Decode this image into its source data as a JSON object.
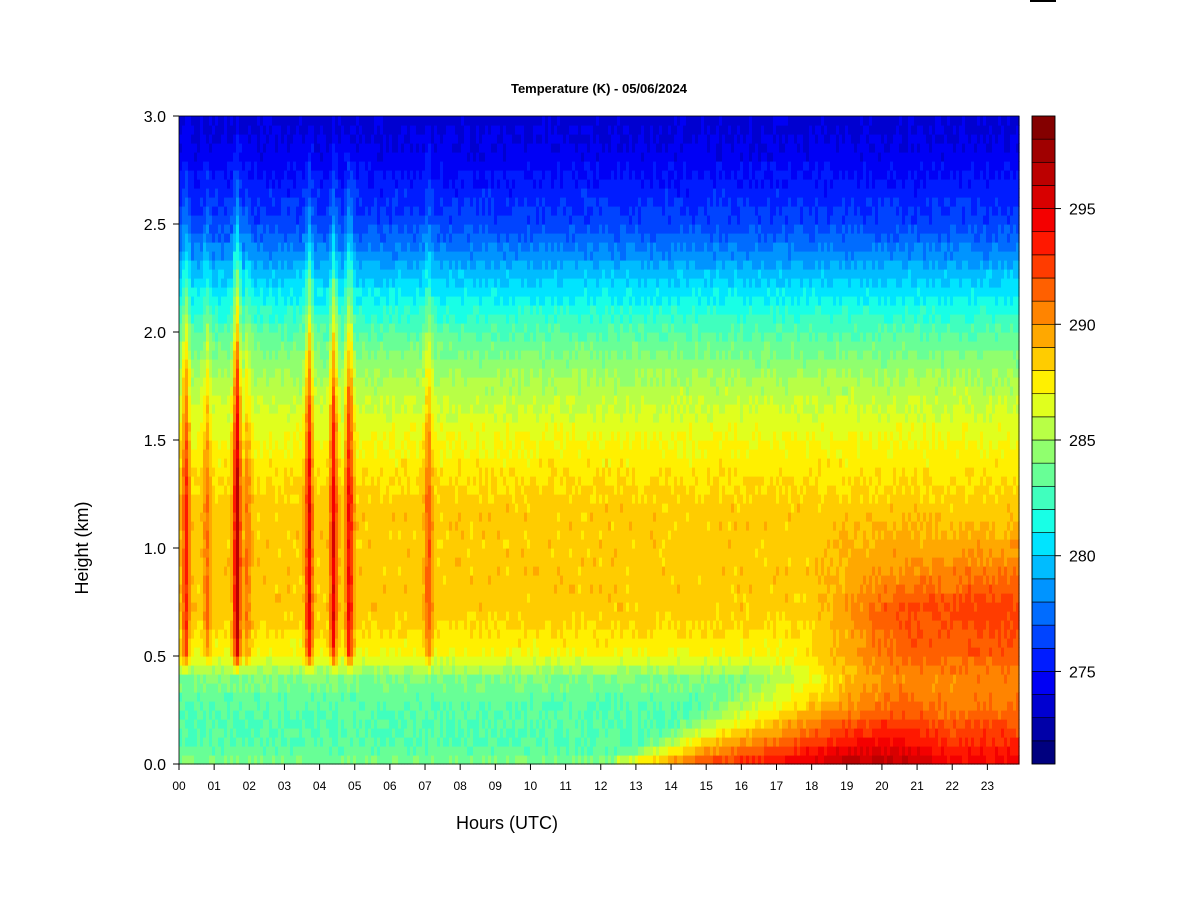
{
  "chart_data": {
    "type": "heatmap",
    "title": "Temperature (K) - 05/06/2024",
    "xlabel": "Hours (UTC)",
    "ylabel": "Height (km)",
    "x_ticks": [
      "00",
      "01",
      "02",
      "03",
      "04",
      "05",
      "06",
      "07",
      "08",
      "09",
      "10",
      "11",
      "12",
      "13",
      "14",
      "15",
      "16",
      "17",
      "18",
      "19",
      "20",
      "21",
      "22",
      "23"
    ],
    "y_ticks": [
      "0.0",
      "0.5",
      "1.0",
      "1.5",
      "2.0",
      "2.5",
      "3.0"
    ],
    "xlim": [
      0,
      23.9
    ],
    "ylim": [
      0,
      3.0
    ],
    "colorbar": {
      "range": [
        271,
        299
      ],
      "ticks": [
        "275",
        "280",
        "285",
        "290",
        "295"
      ],
      "tick_values": [
        275,
        280,
        285,
        290,
        295
      ],
      "levels": 28,
      "colors": [
        "#00007f",
        "#0000a8",
        "#0000d0",
        "#0000f5",
        "#001cff",
        "#0044ff",
        "#006cff",
        "#0094ff",
        "#00bcff",
        "#00e4ff",
        "#18ffe6",
        "#40ffbe",
        "#68ff96",
        "#90ff6e",
        "#b8ff46",
        "#e0ff1e",
        "#fff000",
        "#ffcc00",
        "#ffa800",
        "#ff8400",
        "#ff6000",
        "#ff3c00",
        "#ff1800",
        "#f40000",
        "#d80000",
        "#bc0000",
        "#a00000",
        "#840000"
      ]
    },
    "base_profile": {
      "heights_km": [
        0.0,
        0.1,
        0.25,
        0.4,
        0.5,
        0.7,
        1.0,
        1.2,
        1.5,
        1.8,
        2.0,
        2.2,
        2.5,
        2.8,
        3.0
      ],
      "temps_k": [
        284,
        283,
        283,
        284,
        287,
        288.5,
        288.5,
        288.5,
        287,
        285,
        283,
        280.5,
        276.5,
        274.5,
        273.5
      ]
    },
    "surface_warming": [
      {
        "hour": 13,
        "surface_k": 288
      },
      {
        "hour": 15,
        "surface_k": 292.5
      },
      {
        "hour": 17,
        "surface_k": 294
      },
      {
        "hour": 19,
        "surface_k": 296.5
      },
      {
        "hour": 20.5,
        "surface_k": 296.5
      },
      {
        "hour": 22,
        "surface_k": 294.5
      },
      {
        "hour": 23.9,
        "surface_k": 294.5
      }
    ],
    "warm_streaks": [
      {
        "hour": 0.2,
        "peak_k": 293.5
      },
      {
        "hour": 0.8,
        "peak_k": 291
      },
      {
        "hour": 1.65,
        "peak_k": 297
      },
      {
        "hour": 1.95,
        "peak_k": 291
      },
      {
        "hour": 3.7,
        "peak_k": 295
      },
      {
        "hour": 4.4,
        "peak_k": 294.5
      },
      {
        "hour": 4.85,
        "peak_k": 295
      },
      {
        "hour": 7.1,
        "peak_k": 292
      }
    ]
  }
}
